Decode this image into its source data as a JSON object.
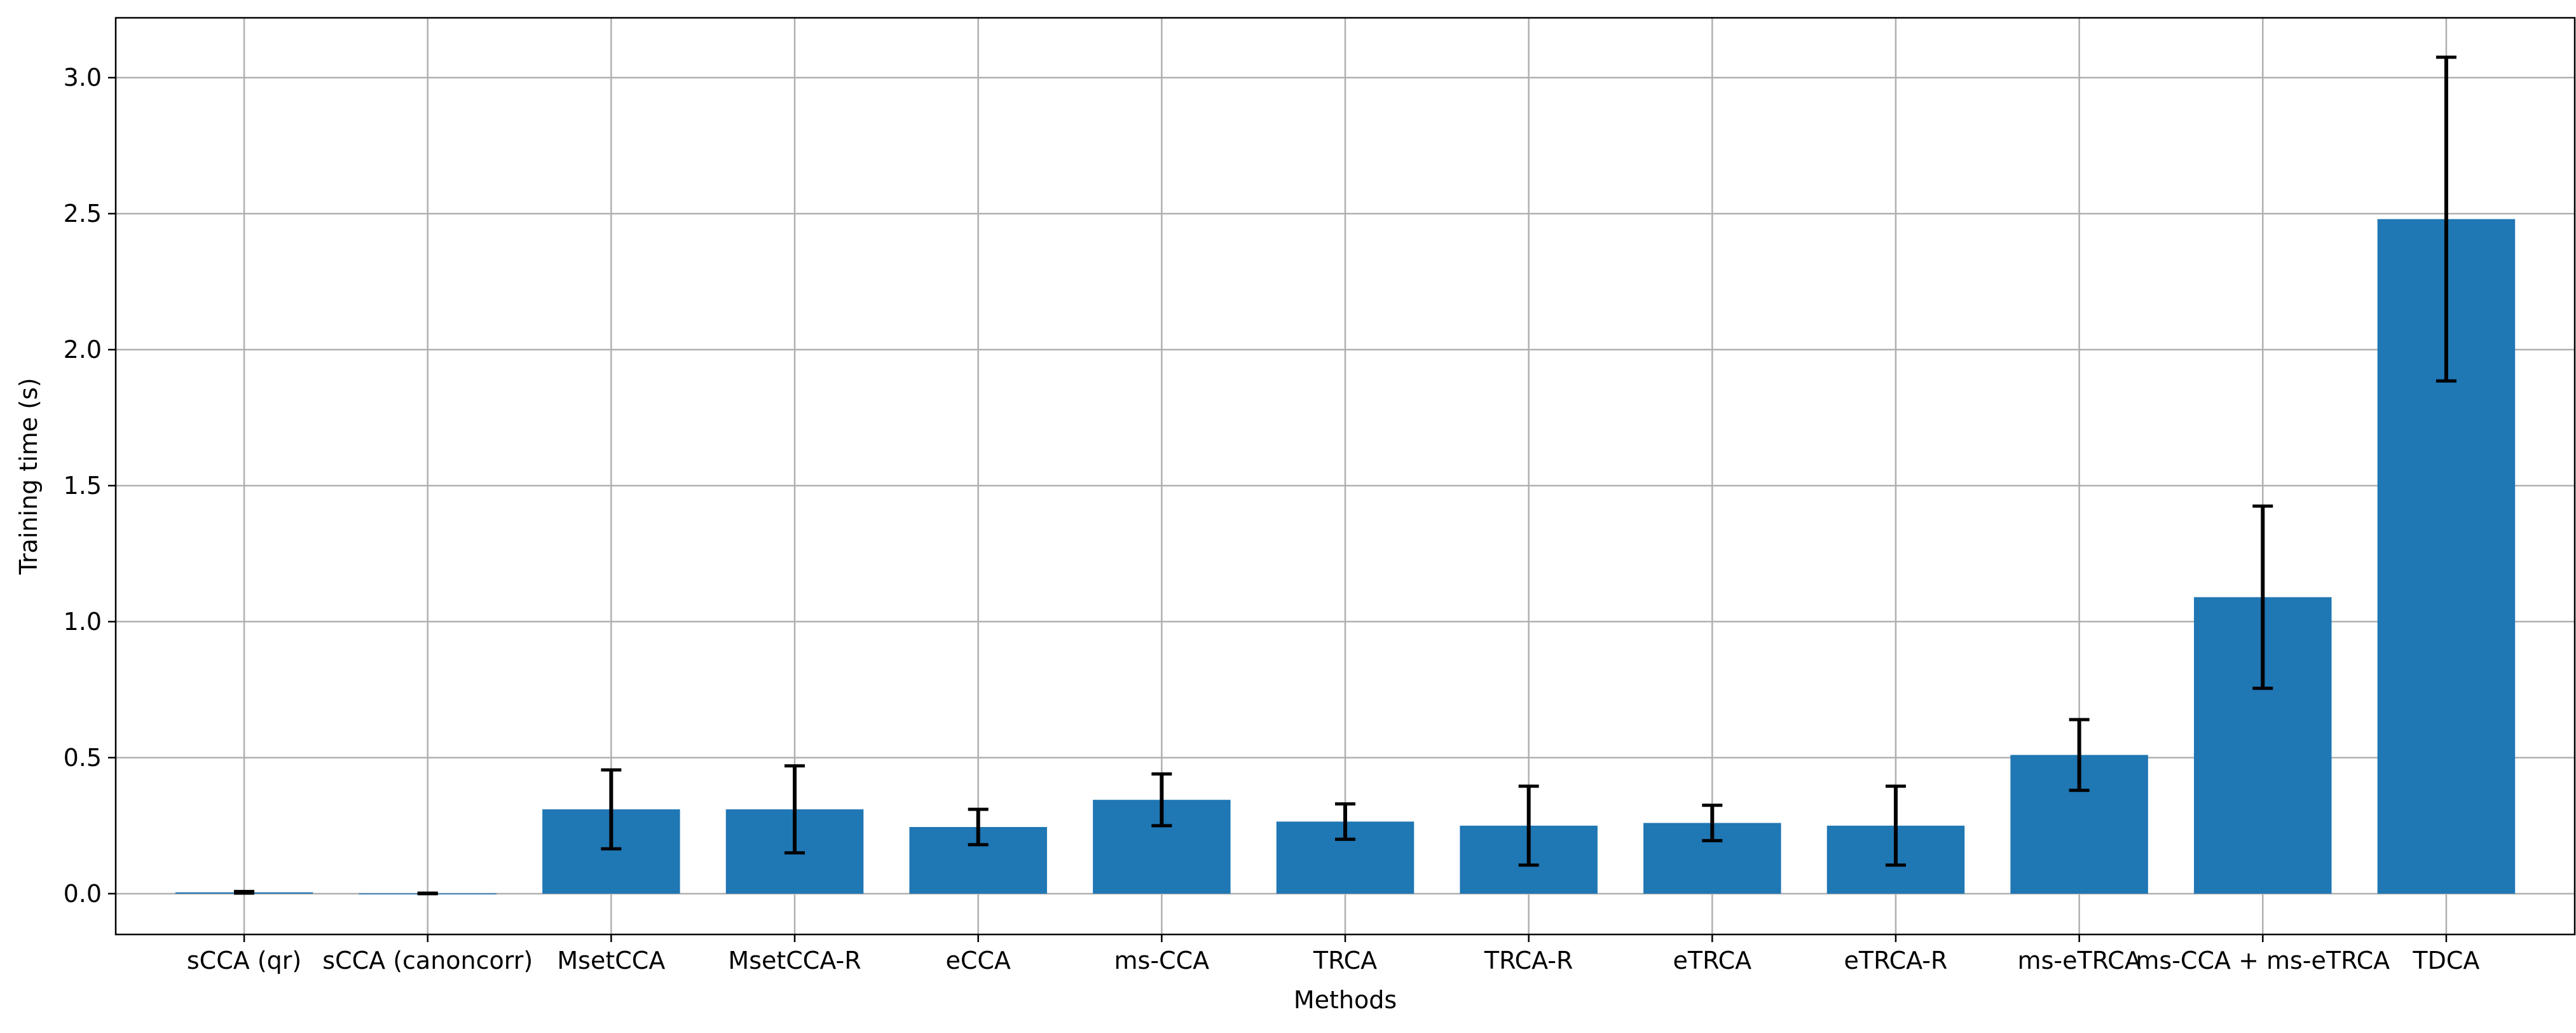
{
  "chart_data": {
    "type": "bar",
    "title": "",
    "xlabel": "Methods",
    "ylabel": "Training time (s)",
    "ylim": [
      -0.15,
      3.22
    ],
    "yticks": [
      "0.0",
      "0.5",
      "1.0",
      "1.5",
      "2.0",
      "2.5",
      "3.0"
    ],
    "grid": true,
    "categories": [
      "sCCA (qr)",
      "sCCA (canoncorr)",
      "MsetCCA",
      "MsetCCA-R",
      "eCCA",
      "ms-CCA",
      "TRCA",
      "TRCA-R",
      "eTRCA",
      "eTRCA-R",
      "ms-eTRCA",
      "ms-CCA + ms-eTRCA",
      "TDCA"
    ],
    "values": [
      0.005,
      0.001,
      0.31,
      0.31,
      0.245,
      0.345,
      0.265,
      0.25,
      0.26,
      0.25,
      0.51,
      1.09,
      2.48
    ],
    "errors": [
      0.003,
      0.001,
      0.145,
      0.16,
      0.065,
      0.095,
      0.065,
      0.145,
      0.065,
      0.145,
      0.13,
      0.335,
      0.595
    ],
    "bar_color": "#1f77b4",
    "error_color": "#000000",
    "grid_color": "#b0b0b0"
  }
}
